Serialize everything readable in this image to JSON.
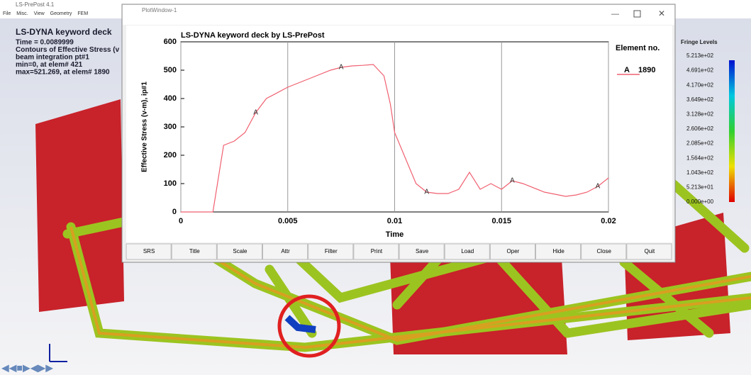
{
  "app_title": "LS-PrePost 4.1",
  "menu": [
    "File",
    "Misc.",
    "View",
    "Geometry",
    "FEM"
  ],
  "overlay": {
    "title": "LS-DYNA keyword deck",
    "lines": [
      "Time =   0.0089999",
      "Contours of Effective Stress (v",
      "beam integration pt#1",
      " min=0, at elem# 421",
      " max=521.269, at elem# 1890"
    ]
  },
  "fringe": {
    "title": "Fringe Levels",
    "levels": [
      "5.213e+02",
      "4.691e+02",
      "4.170e+02",
      "3.649e+02",
      "3.128e+02",
      "2.606e+02",
      "2.085e+02",
      "1.564e+02",
      "1.043e+02",
      "5.213e+01",
      "0.000e+00"
    ]
  },
  "plot_window": {
    "title": "PlotWindow-1",
    "buttons": [
      "SRS",
      "Title",
      "Scale",
      "Attr",
      "Filter",
      "Print",
      "Save",
      "Load",
      "Oper",
      "Hide",
      "Close",
      "Quit"
    ]
  },
  "chart_data": {
    "type": "line",
    "title": "LS-DYNA keyword deck by LS-PrePost",
    "x_label": "Time",
    "y_label": "Effective Stress (v-m), ip#1",
    "legend_title": "Element no.",
    "grid": "x",
    "x": [
      0,
      0.0015,
      0.002,
      0.0025,
      0.003,
      0.0035,
      0.004,
      0.005,
      0.006,
      0.007,
      0.0075,
      0.008,
      0.0085,
      0.009,
      0.0095,
      0.0098,
      0.01,
      0.0105,
      0.011,
      0.0115,
      0.012,
      0.0125,
      0.013,
      0.0135,
      0.014,
      0.0145,
      0.015,
      0.0155,
      0.016,
      0.017,
      0.018,
      0.0185,
      0.019,
      0.0195,
      0.02
    ],
    "series": [
      {
        "name": "1890",
        "symbol": "A",
        "color": "#f06070",
        "values": [
          0,
          0,
          235,
          250,
          280,
          350,
          400,
          440,
          470,
          500,
          510,
          515,
          517,
          520,
          480,
          380,
          280,
          190,
          100,
          70,
          65,
          65,
          80,
          140,
          80,
          100,
          80,
          110,
          100,
          70,
          55,
          60,
          70,
          90,
          120
        ],
        "marker_x": [
          0.0035,
          0.0075,
          0.0115,
          0.0155,
          0.0195
        ]
      }
    ],
    "xlim": [
      0,
      0.02
    ],
    "xticks": [
      0,
      0.005,
      0.01,
      0.015,
      0.02
    ],
    "ylim": [
      0,
      600
    ],
    "yticks": [
      0,
      100,
      200,
      300,
      400,
      500,
      600
    ]
  }
}
